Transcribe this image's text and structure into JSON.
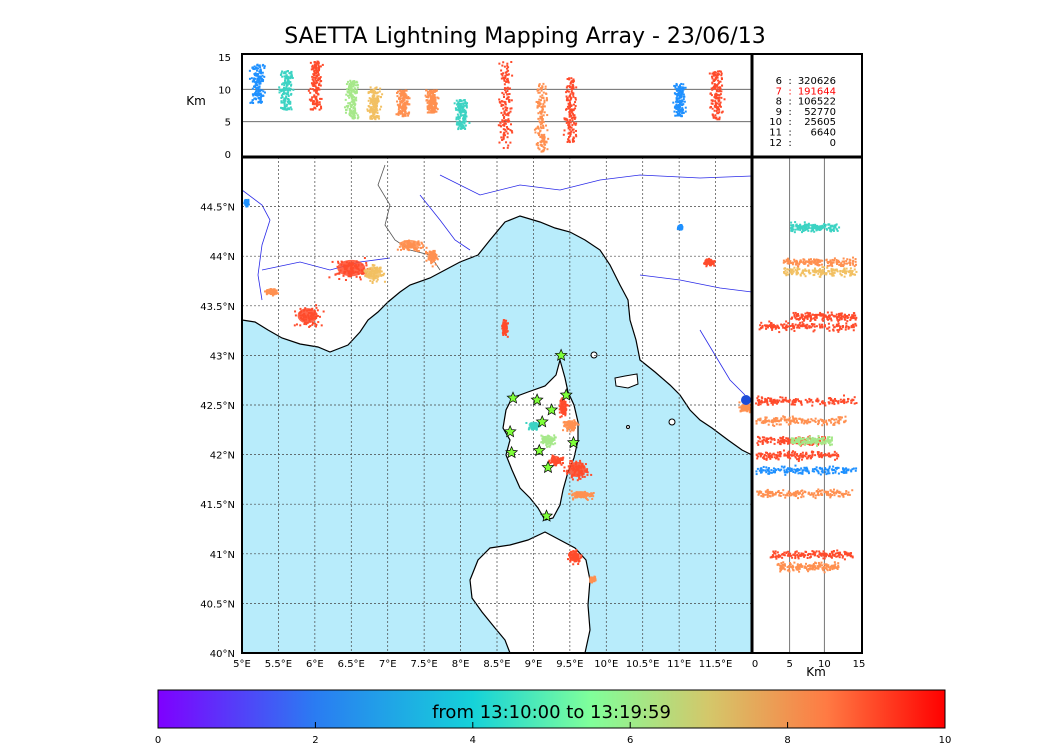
{
  "title": "SAETTA Lightning Mapping Array - 23/06/13",
  "chart_data": [
    {
      "type": "scatter",
      "panel": "altitude-vs-longitude",
      "ylabel": "Km",
      "ylim": [
        0,
        15
      ],
      "y_ticks": [
        "0",
        "5",
        "10",
        "15"
      ],
      "gridlines_y": [
        5,
        10
      ],
      "clusters": [
        {
          "lon": 5.2,
          "alt_lo": 8.0,
          "alt_hi": 14.0,
          "color": "#1e90ff"
        },
        {
          "lon": 5.6,
          "alt_lo": 7.0,
          "alt_hi": 13.0,
          "color": "#3cd3c3"
        },
        {
          "lon": 6.0,
          "alt_lo": 7.0,
          "alt_hi": 14.5,
          "color": "#ff4b2b"
        },
        {
          "lon": 6.5,
          "alt_lo": 5.5,
          "alt_hi": 11.5,
          "color": "#a6e88a"
        },
        {
          "lon": 6.8,
          "alt_lo": 5.5,
          "alt_hi": 10.5,
          "color": "#f2c062"
        },
        {
          "lon": 7.2,
          "alt_lo": 6.0,
          "alt_hi": 10.0,
          "color": "#ff9050"
        },
        {
          "lon": 7.6,
          "alt_lo": 6.5,
          "alt_hi": 10.0,
          "color": "#ff9050"
        },
        {
          "lon": 8.0,
          "alt_lo": 4.0,
          "alt_hi": 8.5,
          "color": "#3cd3c3"
        },
        {
          "lon": 8.6,
          "alt_lo": 1.0,
          "alt_hi": 14.5,
          "color": "#ff4b2b"
        },
        {
          "lon": 9.1,
          "alt_lo": 0.5,
          "alt_hi": 11.0,
          "color": "#ff9050"
        },
        {
          "lon": 9.5,
          "alt_lo": 2.0,
          "alt_hi": 12.0,
          "color": "#ff4b2b"
        },
        {
          "lon": 11.0,
          "alt_lo": 6.0,
          "alt_hi": 11.0,
          "color": "#1e90ff"
        },
        {
          "lon": 11.5,
          "alt_lo": 5.5,
          "alt_hi": 13.0,
          "color": "#ff4b2b"
        }
      ]
    },
    {
      "type": "scatter",
      "panel": "map-plan-view",
      "xlim_deg": [
        5,
        12
      ],
      "ylim_deg": [
        40,
        45
      ],
      "x_ticks": [
        "5°E",
        "5.5°E",
        "6°E",
        "6.5°E",
        "7°E",
        "7.5°E",
        "8°E",
        "8.5°E",
        "9°E",
        "9.5°E",
        "10°E",
        "10.5°E",
        "11°E",
        "11.5°E"
      ],
      "y_ticks": [
        "40°N",
        "40.5°N",
        "41°N",
        "41.5°N",
        "42°N",
        "42.5°N",
        "43°N",
        "43.5°N",
        "44°N",
        "44.5°N"
      ],
      "grid": "dashed",
      "sea_color": "#b8ecfb",
      "clusters": [
        {
          "lon": 6.5,
          "lat": 43.88,
          "rx": 0.35,
          "ry": 0.15,
          "color": "#ff4b2b"
        },
        {
          "lon": 6.8,
          "lat": 43.83,
          "rx": 0.2,
          "ry": 0.12,
          "color": "#f2c062"
        },
        {
          "lon": 7.3,
          "lat": 44.12,
          "rx": 0.25,
          "ry": 0.08,
          "color": "#ff9050"
        },
        {
          "lon": 7.6,
          "lat": 44.0,
          "rx": 0.1,
          "ry": 0.1,
          "color": "#ff9050"
        },
        {
          "lon": 5.4,
          "lat": 43.65,
          "rx": 0.12,
          "ry": 0.05,
          "color": "#ff9050"
        },
        {
          "lon": 5.9,
          "lat": 43.4,
          "rx": 0.25,
          "ry": 0.14,
          "color": "#ff4b2b"
        },
        {
          "lon": 8.6,
          "lat": 43.3,
          "rx": 0.06,
          "ry": 0.12,
          "color": "#ff4b2b"
        },
        {
          "lon": 9.4,
          "lat": 42.5,
          "rx": 0.08,
          "ry": 0.15,
          "color": "#ff4b2b"
        },
        {
          "lon": 9.5,
          "lat": 42.3,
          "rx": 0.15,
          "ry": 0.08,
          "color": "#ff9050"
        },
        {
          "lon": 9.2,
          "lat": 42.15,
          "rx": 0.15,
          "ry": 0.08,
          "color": "#a6e88a"
        },
        {
          "lon": 9.0,
          "lat": 42.3,
          "rx": 0.12,
          "ry": 0.06,
          "color": "#3cd3c3"
        },
        {
          "lon": 9.3,
          "lat": 41.95,
          "rx": 0.12,
          "ry": 0.07,
          "color": "#ff4b2b"
        },
        {
          "lon": 9.6,
          "lat": 41.85,
          "rx": 0.22,
          "ry": 0.14,
          "color": "#ff4b2b"
        },
        {
          "lon": 9.65,
          "lat": 41.6,
          "rx": 0.22,
          "ry": 0.06,
          "color": "#ff9050"
        },
        {
          "lon": 9.55,
          "lat": 40.98,
          "rx": 0.12,
          "ry": 0.1,
          "color": "#ff4b2b"
        },
        {
          "lon": 9.8,
          "lat": 40.75,
          "rx": 0.05,
          "ry": 0.04,
          "color": "#ff9050"
        },
        {
          "lon": 11.9,
          "lat": 42.48,
          "rx": 0.12,
          "ry": 0.06,
          "color": "#ff9050"
        },
        {
          "lon": 11.4,
          "lat": 43.95,
          "rx": 0.1,
          "ry": 0.05,
          "color": "#ff4b2b"
        },
        {
          "lon": 11.0,
          "lat": 44.3,
          "rx": 0.04,
          "ry": 0.03,
          "color": "#1e90ff"
        },
        {
          "lon": 5.05,
          "lat": 44.55,
          "rx": 0.05,
          "ry": 0.05,
          "color": "#1e90ff"
        }
      ],
      "stations": [
        {
          "lon": 9.38,
          "lat": 43.0
        },
        {
          "lon": 8.72,
          "lat": 42.57
        },
        {
          "lon": 9.05,
          "lat": 42.55
        },
        {
          "lon": 9.45,
          "lat": 42.6
        },
        {
          "lon": 9.25,
          "lat": 42.45
        },
        {
          "lon": 9.12,
          "lat": 42.33
        },
        {
          "lon": 8.68,
          "lat": 42.23
        },
        {
          "lon": 9.55,
          "lat": 42.12
        },
        {
          "lon": 8.7,
          "lat": 42.02
        },
        {
          "lon": 9.08,
          "lat": 42.04
        },
        {
          "lon": 9.2,
          "lat": 41.87
        },
        {
          "lon": 9.18,
          "lat": 41.38
        }
      ]
    },
    {
      "type": "scatter",
      "panel": "latitude-vs-altitude",
      "xlabel": "Km",
      "xlim": [
        0,
        15
      ],
      "x_ticks": [
        "0",
        "5",
        "10",
        "15"
      ],
      "gridlines_x": [
        5,
        10
      ],
      "clusters": [
        {
          "lat": 44.3,
          "alt_lo": 5.0,
          "alt_hi": 12.0,
          "color": "#3cd3c3"
        },
        {
          "lat": 43.95,
          "alt_lo": 4.0,
          "alt_hi": 14.5,
          "color": "#ff9050"
        },
        {
          "lat": 43.85,
          "alt_lo": 4.0,
          "alt_hi": 14.5,
          "color": "#f2c062"
        },
        {
          "lat": 43.4,
          "alt_lo": 5.0,
          "alt_hi": 14.5,
          "color": "#ff4b2b"
        },
        {
          "lat": 43.3,
          "alt_lo": 0.5,
          "alt_hi": 14.5,
          "color": "#ff4b2b"
        },
        {
          "lat": 42.55,
          "alt_lo": 0.0,
          "alt_hi": 14.5,
          "color": "#ff4b2b"
        },
        {
          "lat": 42.35,
          "alt_lo": 0.0,
          "alt_hi": 13.0,
          "color": "#ff9050"
        },
        {
          "lat": 42.15,
          "alt_lo": 0.0,
          "alt_hi": 10.0,
          "color": "#ff4b2b"
        },
        {
          "lat": 42.15,
          "alt_lo": 5.0,
          "alt_hi": 11.0,
          "color": "#a6e88a"
        },
        {
          "lat": 42.0,
          "alt_lo": 0.0,
          "alt_hi": 12.0,
          "color": "#ff4b2b"
        },
        {
          "lat": 41.85,
          "alt_lo": 0.0,
          "alt_hi": 14.5,
          "color": "#1e90ff"
        },
        {
          "lat": 41.62,
          "alt_lo": 0.0,
          "alt_hi": 14.0,
          "color": "#ff9050"
        },
        {
          "lat": 41.0,
          "alt_lo": 2.0,
          "alt_hi": 14.0,
          "color": "#ff4b2b"
        },
        {
          "lat": 40.88,
          "alt_lo": 3.0,
          "alt_hi": 12.0,
          "color": "#ff9050"
        }
      ]
    },
    {
      "type": "table",
      "panel": "station-counts",
      "rows": [
        {
          "n": "6",
          "count": "320626",
          "color": "#000000"
        },
        {
          "n": "7",
          "count": "191644",
          "color": "#ff0000"
        },
        {
          "n": "8",
          "count": "106522",
          "color": "#000000"
        },
        {
          "n": "9",
          "count": "52770",
          "color": "#000000"
        },
        {
          "n": "10",
          "count": "25605",
          "color": "#000000"
        },
        {
          "n": "11",
          "count": "6640",
          "color": "#000000"
        },
        {
          "n": "12",
          "count": "0",
          "color": "#000000"
        }
      ]
    },
    {
      "type": "heatmap",
      "panel": "colorbar",
      "range": [
        0,
        10
      ],
      "ticks": [
        "0",
        "2",
        "4",
        "6",
        "8",
        "10"
      ],
      "label": "from 13:10:00 to 13:19:59",
      "colormap": "rainbow"
    }
  ]
}
